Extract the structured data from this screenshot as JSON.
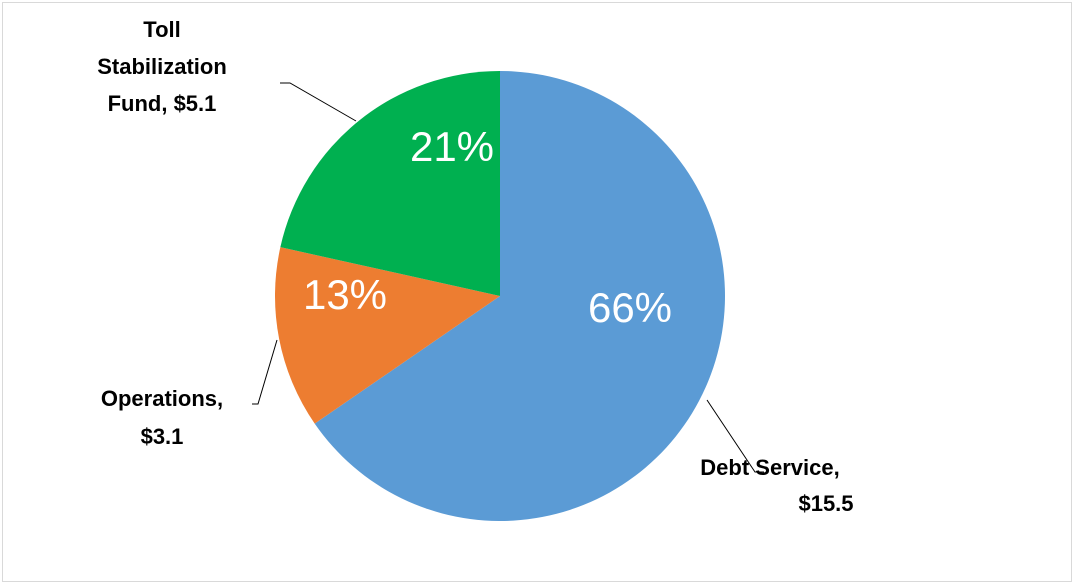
{
  "chart_data": {
    "type": "pie",
    "title": "",
    "start_angle_deg": 0,
    "direction": "clockwise",
    "slices": [
      {
        "category": "Debt Service",
        "value": 15.5,
        "value_label": "$15.5",
        "percent": 66,
        "percent_label": "66%",
        "color": "#5b9bd5"
      },
      {
        "category": "Operations",
        "value": 3.1,
        "value_label": "$3.1",
        "percent": 13,
        "percent_label": "13%",
        "color": "#ed7d31"
      },
      {
        "category": "Toll Stabilization Fund",
        "value": 5.1,
        "value_label": "$5.1",
        "percent": 21,
        "percent_label": "21%",
        "color": "#00b050"
      }
    ],
    "category_labels": [
      [
        "Debt Service,",
        "$15.5"
      ],
      [
        "Operations,",
        "$3.1"
      ],
      [
        "Toll",
        "Stabilization",
        "Fund, $5.1"
      ]
    ]
  }
}
